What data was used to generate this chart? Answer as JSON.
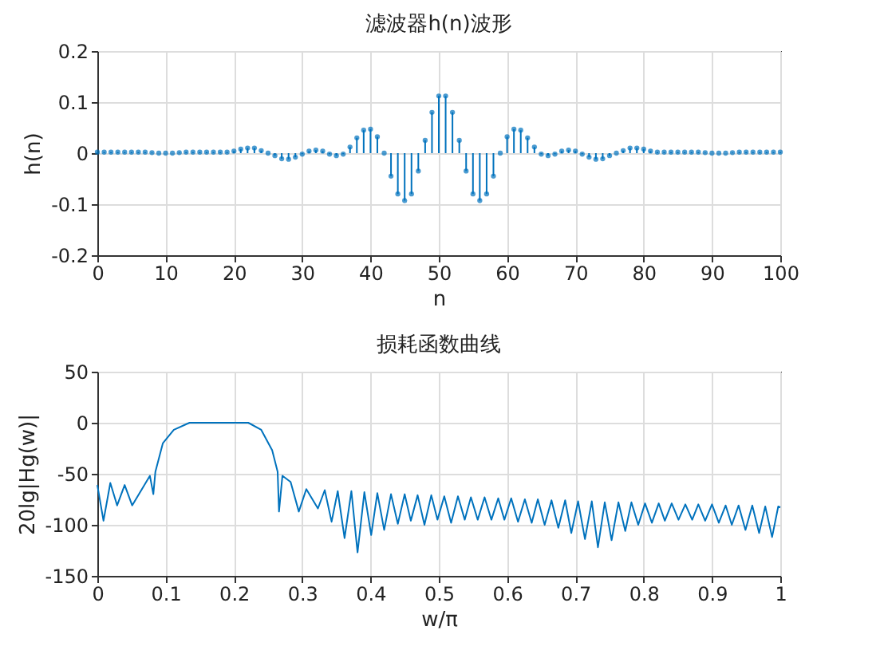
{
  "chart_data": [
    {
      "type": "lollipop",
      "title": "滤波器h(n)波形",
      "xlabel": "n",
      "ylabel": "h(n)",
      "x": [
        0,
        1,
        2,
        3,
        4,
        5,
        6,
        7,
        8,
        9,
        10,
        11,
        12,
        13,
        14,
        15,
        16,
        17,
        18,
        19,
        20,
        21,
        22,
        23,
        24,
        25,
        26,
        27,
        28,
        29,
        30,
        31,
        32,
        33,
        34,
        35,
        36,
        37,
        38,
        39,
        40,
        41,
        42,
        43,
        44,
        45,
        46,
        47,
        48,
        49,
        50,
        51,
        52,
        53,
        54,
        55,
        56,
        57,
        58,
        59,
        60,
        61,
        62,
        63,
        64,
        65,
        66,
        67,
        68,
        69,
        70,
        71,
        72,
        73,
        74,
        75,
        76,
        77,
        78,
        79,
        80,
        81,
        82,
        83,
        84,
        85,
        86,
        87,
        88,
        89,
        90,
        91,
        92,
        93,
        94,
        95,
        96,
        97,
        98,
        99,
        100
      ],
      "series": [
        {
          "color": "#0072bd",
          "values": [
            0.002,
            0.002,
            0.002,
            0.002,
            0.002,
            0.002,
            0.002,
            0.002,
            0.001,
            0,
            0,
            0,
            0.001,
            0.002,
            0.002,
            0.002,
            0.002,
            0.002,
            0.002,
            0.002,
            0.004,
            0.008,
            0.01,
            0.01,
            0.005,
            0,
            -0.005,
            -0.011,
            -0.012,
            -0.008,
            -0.002,
            0.004,
            0.006,
            0.004,
            -0.002,
            -0.005,
            -0.002,
            0.012,
            0.03,
            0.045,
            0.047,
            0.032,
            0,
            -0.045,
            -0.08,
            -0.093,
            -0.08,
            -0.035,
            0.025,
            0.08,
            0.112,
            0.112,
            0.08,
            0.025,
            -0.035,
            -0.08,
            -0.093,
            -0.08,
            -0.045,
            0,
            0.032,
            0.047,
            0.045,
            0.03,
            0.012,
            -0.002,
            -0.005,
            -0.002,
            0.004,
            0.006,
            0.004,
            -0.002,
            -0.008,
            -0.012,
            -0.011,
            -0.005,
            0,
            0.005,
            0.01,
            0.01,
            0.008,
            0.004,
            0.002,
            0.002,
            0.002,
            0.002,
            0.002,
            0.002,
            0.002,
            0.001,
            0,
            0,
            0,
            0.001,
            0.002,
            0.002,
            0.002,
            0.002,
            0.002,
            0.002,
            0.002
          ]
        }
      ],
      "xlim": [
        0,
        100
      ],
      "xticks": [
        0,
        10,
        20,
        30,
        40,
        50,
        60,
        70,
        80,
        90,
        100
      ],
      "ylim": [
        -0.2,
        0.2
      ],
      "yticks": [
        -0.2,
        -0.1,
        0,
        0.1,
        0.2
      ],
      "grid": true,
      "marker": "circle"
    },
    {
      "type": "line",
      "title": "损耗函数曲线",
      "xlabel": "w/π",
      "ylabel": "20lg|Hg(w)|",
      "x": [
        0,
        0.009,
        0.019,
        0.029,
        0.04,
        0.051,
        0.077,
        0.082,
        0.085,
        0.096,
        0.112,
        0.135,
        0.221,
        0.24,
        0.256,
        0.264,
        0.266,
        0.271,
        0.283,
        0.295,
        0.306,
        0.323,
        0.333,
        0.343,
        0.352,
        0.362,
        0.372,
        0.381,
        0.391,
        0.401,
        0.41,
        0.42,
        0.43,
        0.44,
        0.45,
        0.459,
        0.469,
        0.479,
        0.489,
        0.498,
        0.508,
        0.518,
        0.528,
        0.538,
        0.547,
        0.557,
        0.567,
        0.577,
        0.587,
        0.596,
        0.606,
        0.616,
        0.626,
        0.636,
        0.645,
        0.655,
        0.665,
        0.675,
        0.685,
        0.694,
        0.704,
        0.714,
        0.724,
        0.733,
        0.743,
        0.753,
        0.763,
        0.773,
        0.782,
        0.792,
        0.802,
        0.812,
        0.822,
        0.831,
        0.841,
        0.851,
        0.861,
        0.871,
        0.88,
        0.89,
        0.9,
        0.91,
        0.92,
        0.929,
        0.939,
        0.949,
        0.959,
        0.969,
        0.978,
        0.988,
        0.997,
        1.0
      ],
      "series": [
        {
          "color": "#0072bd",
          "values": [
            -61,
            -96,
            -59,
            -81,
            -61,
            -81,
            -52,
            -70,
            -48,
            -20,
            -7,
            0,
            0,
            -7,
            -27,
            -48,
            -87,
            -52,
            -58,
            -87,
            -65,
            -84,
            -66,
            -97,
            -67,
            -113,
            -67,
            -127,
            -68,
            -110,
            -69,
            -105,
            -70,
            -99,
            -70,
            -96,
            -71,
            -100,
            -71,
            -95,
            -72,
            -98,
            -72,
            -95,
            -73,
            -95,
            -73,
            -95,
            -74,
            -95,
            -74,
            -97,
            -75,
            -98,
            -75,
            -100,
            -76,
            -103,
            -76,
            -108,
            -77,
            -114,
            -77,
            -122,
            -78,
            -115,
            -78,
            -106,
            -78,
            -100,
            -79,
            -98,
            -79,
            -96,
            -79,
            -95,
            -80,
            -95,
            -80,
            -96,
            -80,
            -98,
            -81,
            -100,
            -81,
            -105,
            -81,
            -108,
            -82,
            -112,
            -82,
            -83
          ]
        }
      ],
      "xlim": [
        0,
        1
      ],
      "xticks": [
        0,
        0.1,
        0.2,
        0.3,
        0.4,
        0.5,
        0.6,
        0.7,
        0.8,
        0.9,
        1
      ],
      "ylim": [
        -150,
        50
      ],
      "yticks": [
        -150,
        -100,
        -50,
        0,
        50
      ],
      "grid": true,
      "marker": "none"
    }
  ]
}
